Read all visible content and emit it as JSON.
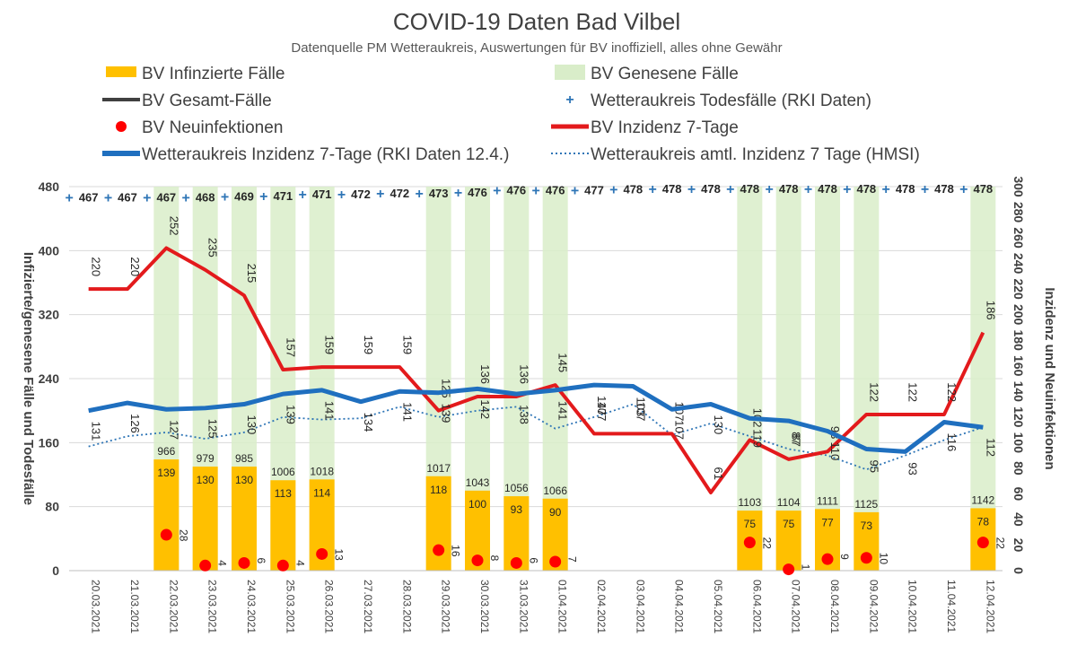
{
  "chart_data": {
    "type": "combo",
    "title": "COVID-19 Daten Bad Vilbel",
    "subtitle": "Datenquelle PM Wetteraukreis, Auswertungen für BV inoffiziell, alles ohne Gewähr",
    "ylabel_left": "Infizierte/genesene Fälle und Todesfälle",
    "ylabel_right": "Inzidenz und Neuinfektionen",
    "ylim_left": [
      0,
      480
    ],
    "ylim_right": [
      0,
      300
    ],
    "left_ticks": [
      "0",
      "80",
      "160",
      "240",
      "320",
      "400",
      "480"
    ],
    "right_ticks": [
      "0",
      "20",
      "40",
      "60",
      "80",
      "100",
      "120",
      "140",
      "160",
      "180",
      "200",
      "220",
      "240",
      "260",
      "280",
      "300"
    ],
    "categories": [
      "20.03.2021",
      "21.03.2021",
      "22.03.2021",
      "23.03.2021",
      "24.03.2021",
      "25.03.2021",
      "26.03.2021",
      "27.03.2021",
      "28.03.2021",
      "29.03.2021",
      "30.03.2021",
      "31.03.2021",
      "01.04.2021",
      "02.04.2021",
      "03.04.2021",
      "04.04.2021",
      "05.04.2021",
      "06.04.2021",
      "07.04.2021",
      "08.04.2021",
      "09.04.2021",
      "10.04.2021",
      "11.04.2021",
      "12.04.2021"
    ],
    "legend": [
      {
        "key": "infizierte",
        "label": "BV Infinzierte Fälle",
        "color": "#FFC000"
      },
      {
        "key": "genesene",
        "label": "BV Genesene Fälle",
        "color": "#D9EDC9"
      },
      {
        "key": "gesamt",
        "label": "BV Gesamt-Fälle",
        "color": "#404040"
      },
      {
        "key": "tod",
        "label": "Wetteraukreis Todesfälle (RKI Daten)",
        "color": "#2E75B6"
      },
      {
        "key": "neu",
        "label": "BV Neuinfektionen",
        "color": "#FF0000"
      },
      {
        "key": "bv_inzidenz",
        "label": "BV Inzidenz 7-Tage",
        "color": "#E31A1C"
      },
      {
        "key": "wk_rki",
        "label": "Wetteraukreis Inzidenz 7-Tage (RKI Daten 12.4.)",
        "color": "#1F6FBF"
      },
      {
        "key": "wk_hmsi",
        "label": "Wetteraukreis amtl. Inzidenz 7 Tage (HMSI)",
        "color": "#2E75B6"
      }
    ],
    "series": {
      "infizierte": [
        null,
        null,
        139,
        130,
        130,
        113,
        114,
        null,
        null,
        118,
        100,
        93,
        90,
        null,
        null,
        null,
        null,
        75,
        75,
        77,
        73,
        null,
        null,
        78
      ],
      "genesene_labels": [
        null,
        null,
        "966",
        "979",
        "985",
        "1006",
        "1018",
        null,
        null,
        "1017",
        "1043",
        "1056",
        "1066",
        null,
        null,
        null,
        null,
        "1103",
        "1104",
        "1111",
        "1125",
        null,
        null,
        "1142"
      ],
      "todesfaelle": [
        467,
        467,
        467,
        467,
        468,
        469,
        471,
        471,
        472,
        472,
        473,
        476,
        476,
        476,
        477,
        478,
        478,
        478,
        478,
        478,
        478,
        478,
        478,
        478
      ],
      "todesfaelle_labels": [
        "467",
        "467",
        "467",
        "468",
        "469",
        "471",
        "471",
        "472",
        "472",
        "473",
        "476",
        "476",
        "476",
        "477",
        "478",
        "478",
        "478",
        "478",
        "478",
        "478",
        "478",
        "478",
        "478",
        "478"
      ],
      "neuinfektionen": [
        null,
        null,
        28,
        4,
        6,
        4,
        13,
        null,
        null,
        16,
        8,
        6,
        7,
        null,
        null,
        null,
        null,
        22,
        1,
        9,
        10,
        null,
        null,
        22
      ],
      "neuinfektionen_labels": [
        null,
        null,
        "28",
        "4",
        "6",
        "4",
        "13",
        null,
        null,
        "16",
        "8",
        "6",
        "7",
        null,
        null,
        null,
        null,
        "22",
        "1",
        "9",
        "10",
        null,
        null,
        "22"
      ],
      "bv_inzidenz": [
        220,
        220,
        252,
        235,
        215,
        157,
        159,
        159,
        159,
        125,
        136,
        136,
        145,
        107,
        107,
        107,
        61,
        102,
        87,
        93,
        122,
        122,
        122,
        186
      ],
      "bv_inzidenz_labels": [
        "220",
        "220",
        "252",
        "235",
        "215",
        "157",
        "159",
        "159",
        "159",
        "125",
        "136",
        "136",
        "145",
        "107",
        "107",
        "107",
        "61",
        "102",
        "87",
        "93",
        "122",
        "122",
        "122",
        "186"
      ],
      "wk_rki": [
        125,
        131,
        126,
        127,
        130,
        138,
        141,
        132,
        140,
        139,
        142,
        138,
        141,
        145,
        144,
        126,
        130,
        119,
        117,
        109,
        95,
        93,
        116,
        112
      ],
      "wk_hmsi": [
        97,
        105,
        108,
        103,
        108,
        120,
        118,
        119,
        128,
        120,
        125,
        128,
        111,
        120,
        130,
        106,
        115,
        105,
        95,
        90,
        79,
        90,
        102,
        112
      ],
      "wk_labels": [
        "131",
        "126",
        "127",
        "125",
        "130",
        "139",
        "141",
        "134",
        "141",
        "139",
        "142",
        "138",
        "141",
        "147",
        "103",
        "107",
        "130",
        "119",
        "87",
        "110",
        "95",
        "93",
        "116",
        "112"
      ]
    }
  }
}
